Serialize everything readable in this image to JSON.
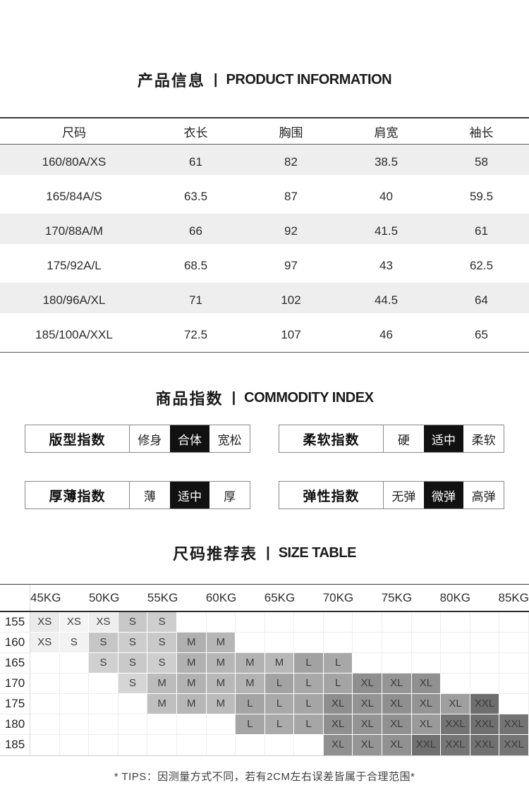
{
  "sections": {
    "product_info": {
      "title_zh": "产品信息",
      "divider": "|",
      "title_en": "PRODUCT INFORMATION"
    },
    "commodity_index": {
      "title_zh": "商品指数",
      "divider": "|",
      "title_en": "COMMODITY INDEX"
    },
    "size_table": {
      "title_zh": "尺码推荐表",
      "divider": "|",
      "title_en": "SIZE TABLE"
    }
  },
  "measurement_table": {
    "headers": [
      "尺码",
      "衣长",
      "胸围",
      "肩宽",
      "袖长"
    ],
    "shade_color": "#eeeeee",
    "rows": [
      {
        "shaded": true,
        "cells": [
          "160/80A/XS",
          "61",
          "82",
          "38.5",
          "58"
        ]
      },
      {
        "shaded": false,
        "cells": [
          "165/84A/S",
          "63.5",
          "87",
          "40",
          "59.5"
        ]
      },
      {
        "shaded": true,
        "cells": [
          "170/88A/M",
          "66",
          "92",
          "41.5",
          "61"
        ]
      },
      {
        "shaded": false,
        "cells": [
          "175/92A/L",
          "68.5",
          "97",
          "43",
          "62.5"
        ]
      },
      {
        "shaded": true,
        "cells": [
          "180/96A/XL",
          "71",
          "102",
          "44.5",
          "64"
        ]
      },
      {
        "shaded": false,
        "cells": [
          "185/100A/XXL",
          "72.5",
          "107",
          "46",
          "65"
        ]
      }
    ]
  },
  "index_panels": [
    {
      "key": "fit",
      "label": "版型指数",
      "options": [
        "修身",
        "合体",
        "宽松"
      ],
      "selected": 1,
      "selected_bg": "#111111"
    },
    {
      "key": "softness",
      "label": "柔软指数",
      "options": [
        "硬",
        "适中",
        "柔软"
      ],
      "selected": 1,
      "selected_bg": "#111111"
    },
    {
      "key": "thickness",
      "label": "厚薄指数",
      "options": [
        "薄",
        "适中",
        "厚"
      ],
      "selected": 1,
      "selected_bg": "#111111"
    },
    {
      "key": "elasticity",
      "label": "弹性指数",
      "options": [
        "无弹",
        "微弹",
        "高弹"
      ],
      "selected": 1,
      "selected_bg": "#111111"
    }
  ],
  "size_chart": {
    "weight_headers": [
      "45KG",
      "50KG",
      "55KG",
      "60KG",
      "65KG",
      "70KG",
      "75KG",
      "80KG",
      "85KG"
    ],
    "columns": 17,
    "rows": [
      {
        "height": "155",
        "cells": [
          {
            "col": 1,
            "label": "XS",
            "color": "#eaeaea"
          },
          {
            "col": 2,
            "label": "XS",
            "color": "#f4f4f4"
          },
          {
            "col": 3,
            "label": "XS",
            "color": "#eeeeee"
          },
          {
            "col": 4,
            "label": "S",
            "color": "#c8c8c8"
          },
          {
            "col": 5,
            "label": "S",
            "color": "#cecece"
          }
        ]
      },
      {
        "height": "160",
        "cells": [
          {
            "col": 1,
            "label": "XS",
            "color": "#f0f0f0"
          },
          {
            "col": 2,
            "label": "S",
            "color": "#f2f2f2"
          },
          {
            "col": 3,
            "label": "S",
            "color": "#c6c6c6"
          },
          {
            "col": 4,
            "label": "S",
            "color": "#cdcdcd"
          },
          {
            "col": 5,
            "label": "S",
            "color": "#c9c9c9"
          },
          {
            "col": 6,
            "label": "M",
            "color": "#b0b0b0"
          },
          {
            "col": 7,
            "label": "M",
            "color": "#b6b6b6"
          }
        ]
      },
      {
        "height": "165",
        "cells": [
          {
            "col": 3,
            "label": "S",
            "color": "#d0d0d0"
          },
          {
            "col": 4,
            "label": "S",
            "color": "#c9c9c9"
          },
          {
            "col": 5,
            "label": "S",
            "color": "#cecece"
          },
          {
            "col": 6,
            "label": "M",
            "color": "#b1b1b1"
          },
          {
            "col": 7,
            "label": "M",
            "color": "#b6b6b6"
          },
          {
            "col": 8,
            "label": "M",
            "color": "#b2b2b2"
          },
          {
            "col": 9,
            "label": "M",
            "color": "#b7b7b7"
          },
          {
            "col": 10,
            "label": "L",
            "color": "#a2a2a2"
          },
          {
            "col": 11,
            "label": "L",
            "color": "#a8a8a8"
          }
        ]
      },
      {
        "height": "170",
        "cells": [
          {
            "col": 4,
            "label": "S",
            "color": "#d5d5d5"
          },
          {
            "col": 5,
            "label": "M",
            "color": "#bcbcbc"
          },
          {
            "col": 6,
            "label": "M",
            "color": "#b2b2b2"
          },
          {
            "col": 7,
            "label": "M",
            "color": "#b8b8b8"
          },
          {
            "col": 8,
            "label": "M",
            "color": "#b3b3b3"
          },
          {
            "col": 9,
            "label": "L",
            "color": "#a3a3a3"
          },
          {
            "col": 10,
            "label": "L",
            "color": "#a8a8a8"
          },
          {
            "col": 11,
            "label": "L",
            "color": "#a4a4a4"
          },
          {
            "col": 12,
            "label": "XL",
            "color": "#8f8f8f"
          },
          {
            "col": 13,
            "label": "XL",
            "color": "#959595"
          },
          {
            "col": 14,
            "label": "XL",
            "color": "#909090"
          }
        ]
      },
      {
        "height": "175",
        "cells": [
          {
            "col": 5,
            "label": "M",
            "color": "#bfbfbf"
          },
          {
            "col": 6,
            "label": "M",
            "color": "#b7b7b7"
          },
          {
            "col": 7,
            "label": "M",
            "color": "#bbbbbb"
          },
          {
            "col": 8,
            "label": "L",
            "color": "#a4a4a4"
          },
          {
            "col": 9,
            "label": "L",
            "color": "#a9a9a9"
          },
          {
            "col": 10,
            "label": "L",
            "color": "#a5a5a5"
          },
          {
            "col": 11,
            "label": "XL",
            "color": "#8e8e8e"
          },
          {
            "col": 12,
            "label": "XL",
            "color": "#939393"
          },
          {
            "col": 13,
            "label": "XL",
            "color": "#8f8f8f"
          },
          {
            "col": 14,
            "label": "XL",
            "color": "#949494"
          },
          {
            "col": 15,
            "label": "XL",
            "color": "#9f9f9f"
          },
          {
            "col": 16,
            "label": "XXL",
            "color": "#6e6e6e"
          }
        ]
      },
      {
        "height": "180",
        "cells": [
          {
            "col": 8,
            "label": "L",
            "color": "#a5a5a5"
          },
          {
            "col": 9,
            "label": "L",
            "color": "#aaaaaa"
          },
          {
            "col": 10,
            "label": "L",
            "color": "#a6a6a6"
          },
          {
            "col": 11,
            "label": "XL",
            "color": "#8f8f8f"
          },
          {
            "col": 12,
            "label": "XL",
            "color": "#949494"
          },
          {
            "col": 13,
            "label": "XL",
            "color": "#909090"
          },
          {
            "col": 14,
            "label": "XL",
            "color": "#9a9a9a"
          },
          {
            "col": 15,
            "label": "XXL",
            "color": "#747474"
          },
          {
            "col": 16,
            "label": "XXL",
            "color": "#707070"
          },
          {
            "col": 17,
            "label": "XXL",
            "color": "#747474"
          }
        ]
      },
      {
        "height": "185",
        "cells": [
          {
            "col": 11,
            "label": "XL",
            "color": "#909090"
          },
          {
            "col": 12,
            "label": "XL",
            "color": "#959595"
          },
          {
            "col": 13,
            "label": "XL",
            "color": "#919191"
          },
          {
            "col": 14,
            "label": "XXL",
            "color": "#707070"
          },
          {
            "col": 15,
            "label": "XXL",
            "color": "#757575"
          },
          {
            "col": 16,
            "label": "XXL",
            "color": "#717171"
          },
          {
            "col": 17,
            "label": "XXL",
            "color": "#757575"
          }
        ]
      }
    ]
  },
  "footer": {
    "tips": "* TIPS：因测量方式不同，若有2CM左右误差皆属于合理范围*"
  }
}
